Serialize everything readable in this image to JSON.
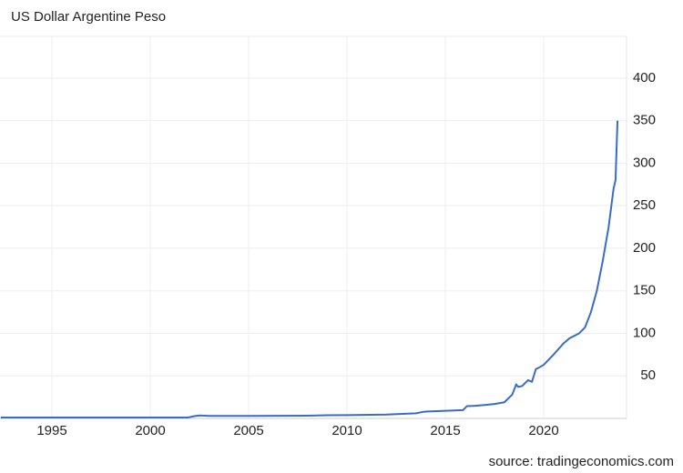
{
  "chart_data": {
    "type": "line",
    "title": "US Dollar Argentine Peso",
    "source": "source: tradingeconomics.com",
    "x": [
      1992.4,
      1995,
      2000,
      2001.9,
      2002.2,
      2002.5,
      2003,
      2005,
      2008,
      2009,
      2010,
      2012,
      2013.5,
      2013.9,
      2014.1,
      2015,
      2015.9,
      2016.1,
      2016.5,
      2017,
      2017.5,
      2018,
      2018.4,
      2018.6,
      2018.7,
      2018.9,
      2019.2,
      2019.4,
      2019.6,
      2019.7,
      2020,
      2020.5,
      2021,
      2021.3,
      2021.8,
      2022.1,
      2022.4,
      2022.7,
      2023,
      2023.3,
      2023.55,
      2023.65,
      2023.75
    ],
    "series": [
      {
        "name": "US Dollar Argentine Peso",
        "color": "#3a6cc6",
        "values": [
          1,
          1,
          1,
          1,
          2.5,
          3.5,
          2.9,
          2.9,
          3.2,
          3.7,
          3.9,
          4.6,
          6,
          7.8,
          8.1,
          9,
          9.8,
          14.5,
          14.8,
          15.8,
          17,
          19,
          28,
          40,
          37,
          38,
          45,
          43,
          58,
          59,
          63,
          75,
          88,
          94,
          100,
          107,
          125,
          150,
          185,
          225,
          270,
          280,
          350
        ]
      }
    ],
    "xlim": [
      1992.36,
      2024.21
    ],
    "ylim": [
      0,
      449
    ],
    "xticks": [
      1995,
      2000,
      2005,
      2010,
      2015,
      2020
    ],
    "yticks": [
      50,
      100,
      150,
      200,
      250,
      300,
      350,
      400
    ],
    "grid": true
  }
}
